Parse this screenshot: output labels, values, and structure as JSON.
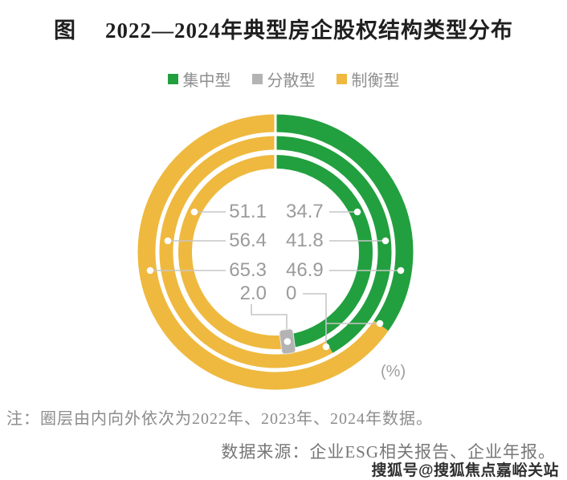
{
  "title": {
    "prefix": "图",
    "text": "2022—2024年典型房企股权结构类型分布"
  },
  "legend": [
    {
      "label": "集中型",
      "color": "#22A03F"
    },
    {
      "label": "分散型",
      "color": "#B3B3B3"
    },
    {
      "label": "制衡型",
      "color": "#EFB93F"
    }
  ],
  "unit_label": "(%)",
  "note": "注：圈层由内向外依次为2022年、2023年、2024年数据。",
  "source": "数据来源：企业ESG相关报告、企业年报。",
  "watermark": "搜狐号@搜狐焦点嘉峪关站",
  "chart_data": {
    "type": "pie",
    "subtype": "multi-ring-donut",
    "title": "2022—2024年典型房企股权结构类型分布",
    "unit": "%",
    "ring_order": "圈层由内向外依次为2022年、2023年、2024年数据",
    "categories": [
      "集中型",
      "分散型",
      "制衡型"
    ],
    "colors": {
      "集中型": "#22A03F",
      "分散型": "#B3B3B3",
      "制衡型": "#EFB93F"
    },
    "rings": [
      {
        "year": "2022",
        "position": "inner",
        "values": {
          "集中型": 46.9,
          "分散型": 2.0,
          "制衡型": 51.1
        }
      },
      {
        "year": "2023",
        "position": "middle",
        "values": {
          "集中型": 41.8,
          "分散型": 0,
          "制衡型": 56.4
        }
      },
      {
        "year": "2024",
        "position": "outer",
        "values": {
          "集中型": 34.7,
          "分散型": 0,
          "制衡型": 65.3
        }
      }
    ],
    "display_labels": {
      "left_column": [
        "51.1",
        "56.4",
        "65.3",
        "2.0"
      ],
      "right_column": [
        "34.7",
        "41.8",
        "46.9",
        "0"
      ]
    }
  }
}
